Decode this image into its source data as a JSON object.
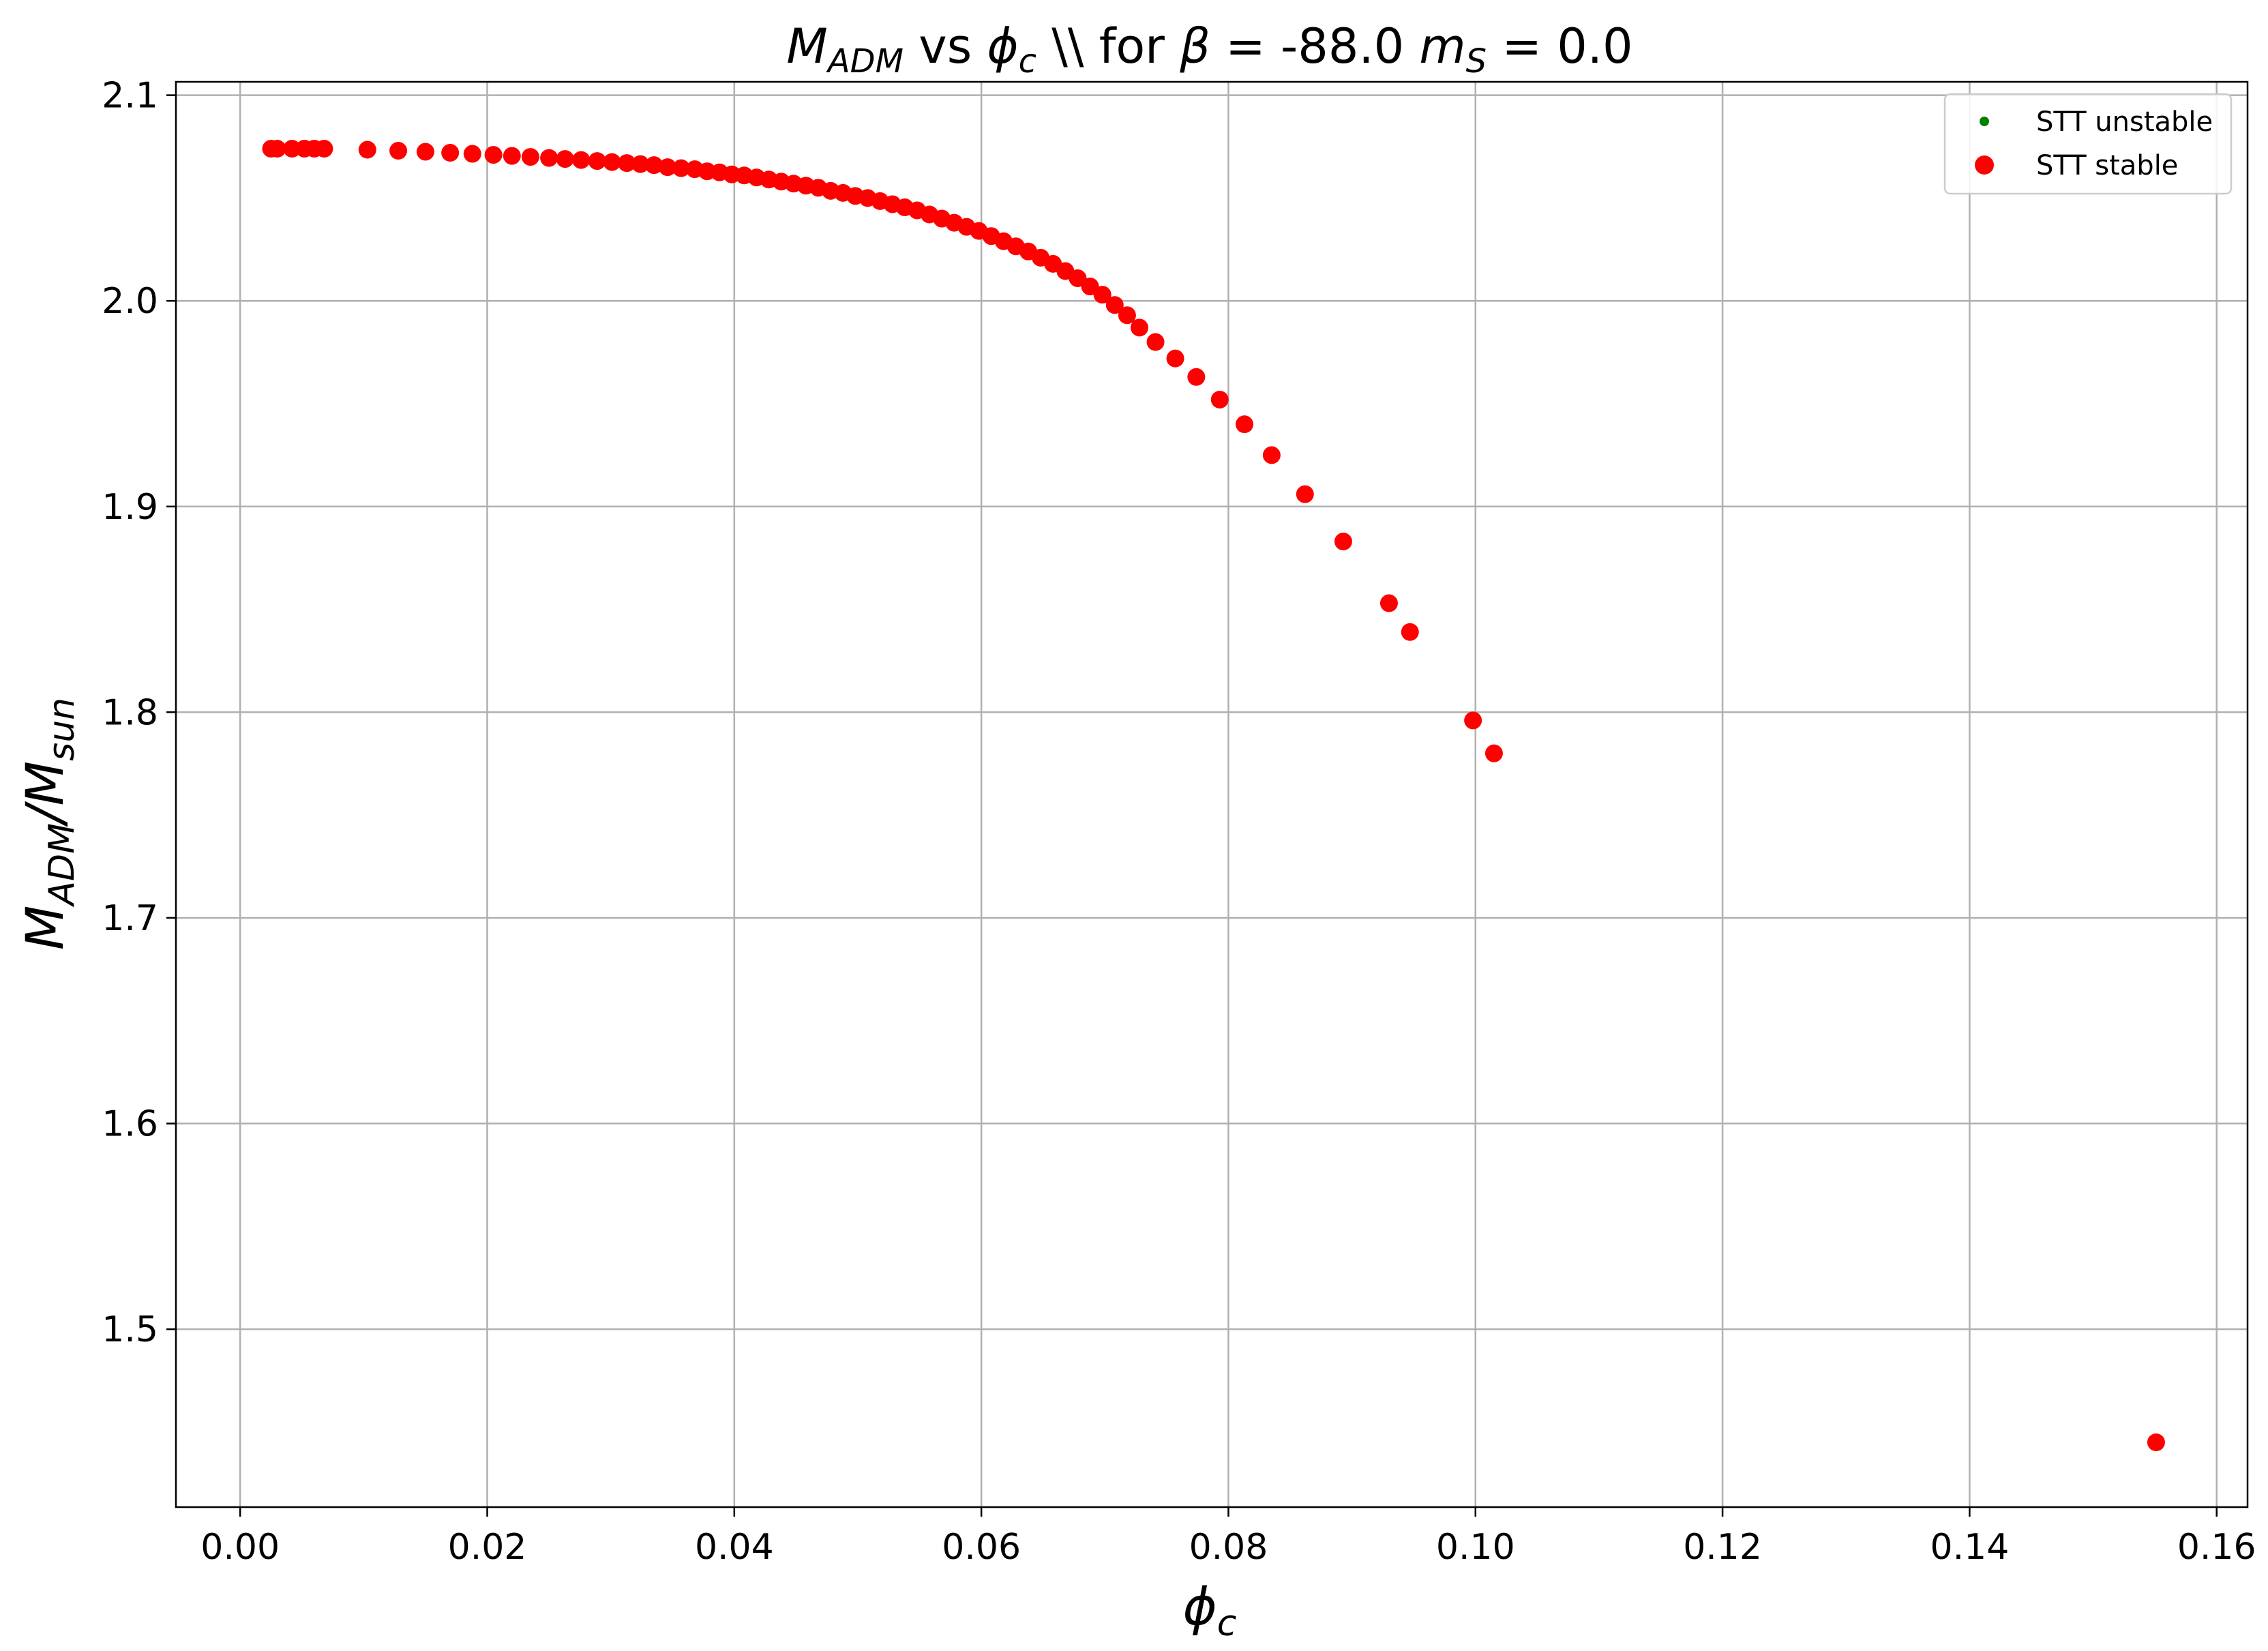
{
  "chart_data": {
    "type": "scatter",
    "title": {
      "m": "M",
      "m_sub": "ADM",
      "vs": " vs ",
      "phi": "ϕ",
      "phi_sub": "c",
      "mid": " \\\\ for ",
      "beta": "β",
      "eq_beta": " = -88.0 ",
      "ms": "m",
      "ms_sub": "S",
      "eq_ms": " = 0.0"
    },
    "xlabel": {
      "sym": "ϕ",
      "sub": "c"
    },
    "ylabel": {
      "m1": "M",
      "sub1": "ADM",
      "slash": "/",
      "m2": "M",
      "sub2": "sun"
    },
    "xlim": [
      -0.0052,
      0.1625
    ],
    "ylim": [
      1.4135,
      2.1065
    ],
    "xticks": [
      0.0,
      0.02,
      0.04,
      0.06,
      0.08,
      0.1,
      0.12,
      0.14,
      0.16
    ],
    "xtick_labels": [
      "0.00",
      "0.02",
      "0.04",
      "0.06",
      "0.08",
      "0.10",
      "0.12",
      "0.14",
      "0.16"
    ],
    "yticks": [
      1.5,
      1.6,
      1.7,
      1.8,
      1.9,
      2.0,
      2.1
    ],
    "ytick_labels": [
      "1.5",
      "1.6",
      "1.7",
      "1.8",
      "1.9",
      "2.0",
      "2.1"
    ],
    "grid": true,
    "legend_position": "top-right",
    "series": [
      {
        "name": "STT unstable",
        "color": "#008000",
        "marker": "small-dot",
        "points": []
      },
      {
        "name": "STT stable",
        "color": "#ff0000",
        "marker": "dot",
        "points": [
          [
            0.0025,
            2.074
          ],
          [
            0.003,
            2.074
          ],
          [
            0.0042,
            2.074
          ],
          [
            0.0052,
            2.074
          ],
          [
            0.006,
            2.074
          ],
          [
            0.0068,
            2.074
          ],
          [
            0.0103,
            2.0735
          ],
          [
            0.0128,
            2.073
          ],
          [
            0.015,
            2.0725
          ],
          [
            0.017,
            2.072
          ],
          [
            0.0188,
            2.0715
          ],
          [
            0.0205,
            2.071
          ],
          [
            0.022,
            2.0705
          ],
          [
            0.0235,
            2.07
          ],
          [
            0.025,
            2.0695
          ],
          [
            0.0263,
            2.069
          ],
          [
            0.0276,
            2.0685
          ],
          [
            0.0289,
            2.068
          ],
          [
            0.0301,
            2.0675
          ],
          [
            0.0313,
            2.067
          ],
          [
            0.0324,
            2.0665
          ],
          [
            0.0335,
            2.066
          ],
          [
            0.0346,
            2.065
          ],
          [
            0.0357,
            2.0645
          ],
          [
            0.0368,
            2.064
          ],
          [
            0.0378,
            2.063
          ],
          [
            0.0388,
            2.0625
          ],
          [
            0.0398,
            2.0615
          ],
          [
            0.0408,
            2.061
          ],
          [
            0.0418,
            2.06
          ],
          [
            0.0428,
            2.059
          ],
          [
            0.0438,
            2.058
          ],
          [
            0.0448,
            2.057
          ],
          [
            0.0458,
            2.056
          ],
          [
            0.0468,
            2.055
          ],
          [
            0.0478,
            2.0535
          ],
          [
            0.0488,
            2.0525
          ],
          [
            0.0498,
            2.051
          ],
          [
            0.0508,
            2.05
          ],
          [
            0.0518,
            2.0485
          ],
          [
            0.0528,
            2.047
          ],
          [
            0.0538,
            2.0455
          ],
          [
            0.0548,
            2.044
          ],
          [
            0.0558,
            2.042
          ],
          [
            0.0568,
            2.04
          ],
          [
            0.0578,
            2.038
          ],
          [
            0.0588,
            2.036
          ],
          [
            0.0598,
            2.034
          ],
          [
            0.0608,
            2.0315
          ],
          [
            0.0618,
            2.029
          ],
          [
            0.0628,
            2.0265
          ],
          [
            0.0638,
            2.024
          ],
          [
            0.0648,
            2.021
          ],
          [
            0.0658,
            2.018
          ],
          [
            0.0668,
            2.0145
          ],
          [
            0.0678,
            2.011
          ],
          [
            0.0688,
            2.007
          ],
          [
            0.0698,
            2.003
          ],
          [
            0.0708,
            1.998
          ],
          [
            0.0718,
            1.993
          ],
          [
            0.0728,
            1.987
          ],
          [
            0.0741,
            1.98
          ],
          [
            0.0757,
            1.972
          ],
          [
            0.0774,
            1.963
          ],
          [
            0.0793,
            1.952
          ],
          [
            0.0813,
            1.94
          ],
          [
            0.0835,
            1.925
          ],
          [
            0.0862,
            1.906
          ],
          [
            0.0893,
            1.883
          ],
          [
            0.093,
            1.853
          ],
          [
            0.0947,
            1.839
          ],
          [
            0.0998,
            1.796
          ],
          [
            0.1015,
            1.78
          ],
          [
            0.1551,
            1.445
          ]
        ]
      }
    ]
  }
}
